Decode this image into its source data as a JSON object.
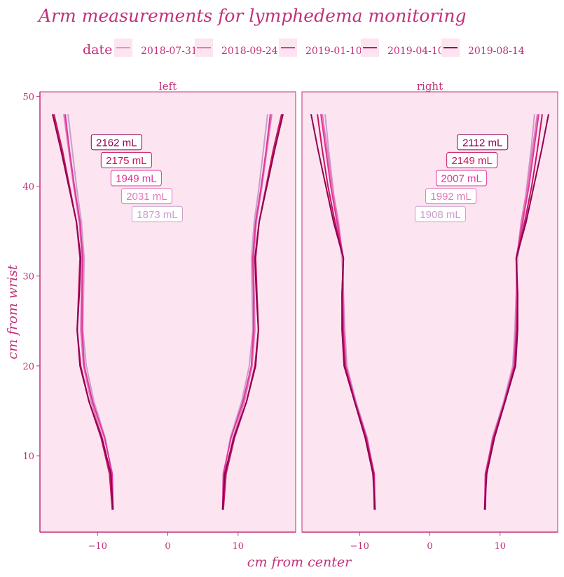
{
  "chart_data": {
    "type": "line",
    "title": "Arm measurements for lymphedema monitoring",
    "xlabel": "cm from center",
    "ylabel": "cm from wrist",
    "xlim": [
      -18.2,
      18.2
    ],
    "ylim": [
      1.5,
      50.5
    ],
    "xticks": [
      -10,
      0,
      10
    ],
    "yticks": [
      10,
      20,
      30,
      40,
      50
    ],
    "grid": false,
    "legend": {
      "title": "date",
      "position": "top",
      "entries": [
        "2018-07-31",
        "2018-09-24",
        "2019-01-10",
        "2019-04-10",
        "2019-08-14"
      ]
    },
    "colors": {
      "2018-07-31": "#c99fcd",
      "2018-09-24": "#e577b9",
      "2019-01-10": "#e0359c",
      "2019-04-10": "#c8155f",
      "2019-08-14": "#8e0152",
      "panel_bg": "#fce4f0",
      "accent": "#c2307a"
    },
    "y": [
      4,
      8,
      12,
      16,
      20,
      24,
      28,
      32,
      36,
      40,
      44,
      48
    ],
    "panels": [
      {
        "name": "left",
        "series": [
          {
            "name": "2018-07-31",
            "half_width": [
              7.8,
              8.0,
              8.9,
              10.5,
              11.6,
              12.1,
              12.0,
              11.9,
              12.3,
              13.0,
              13.6,
              14.2
            ],
            "volume_label": "1873 mL"
          },
          {
            "name": "2018-09-24",
            "half_width": [
              7.9,
              8.2,
              9.3,
              10.9,
              12.0,
              12.4,
              12.3,
              12.2,
              12.6,
              13.4,
              14.1,
              14.8
            ],
            "volume_label": "2031 mL"
          },
          {
            "name": "2019-01-10",
            "half_width": [
              7.8,
              7.9,
              9.0,
              10.7,
              11.9,
              12.2,
              12.2,
              12.1,
              12.5,
              13.3,
              14.0,
              14.6
            ],
            "volume_label": "1949 mL"
          },
          {
            "name": "2019-04-10",
            "half_width": [
              7.9,
              8.3,
              9.5,
              11.2,
              12.4,
              12.9,
              12.7,
              12.5,
              13.0,
              14.0,
              15.0,
              16.2
            ],
            "volume_label": "2175 mL"
          },
          {
            "name": "2019-08-14",
            "half_width": [
              7.8,
              8.1,
              9.4,
              11.2,
              12.5,
              12.9,
              12.6,
              12.4,
              13.0,
              14.1,
              15.2,
              16.4
            ],
            "volume_label": "2162 mL"
          }
        ]
      },
      {
        "name": "right",
        "series": [
          {
            "name": "2018-07-31",
            "half_width": [
              7.9,
              8.0,
              8.9,
              10.5,
              11.8,
              12.1,
              12.3,
              12.5,
              13.3,
              13.8,
              14.4,
              14.9
            ],
            "volume_label": "1908 mL"
          },
          {
            "name": "2018-09-24",
            "half_width": [
              7.9,
              8.0,
              9.0,
              10.6,
              11.9,
              12.2,
              12.3,
              12.4,
              13.0,
              13.9,
              14.6,
              15.3
            ],
            "volume_label": "1992 mL"
          },
          {
            "name": "2019-01-10",
            "half_width": [
              7.8,
              7.9,
              9.0,
              10.6,
              12.0,
              12.3,
              12.4,
              12.3,
              13.2,
              14.1,
              14.8,
              15.5
            ],
            "volume_label": "2007 mL"
          },
          {
            "name": "2019-04-10",
            "half_width": [
              7.9,
              8.0,
              9.1,
              10.7,
              12.1,
              12.4,
              12.5,
              12.3,
              13.5,
              14.5,
              15.3,
              16.0
            ],
            "volume_label": "2149 mL"
          },
          {
            "name": "2019-08-14",
            "half_width": [
              7.8,
              8.1,
              9.2,
              10.7,
              12.2,
              12.5,
              12.5,
              12.3,
              13.7,
              14.8,
              15.9,
              16.9
            ],
            "volume_label": "2112 mL"
          }
        ]
      }
    ],
    "volume_label_positions": {
      "left": [
        {
          "series": "2019-08-14",
          "x": -7.3,
          "y": 44.9
        },
        {
          "series": "2019-04-10",
          "x": -5.9,
          "y": 42.9
        },
        {
          "series": "2019-01-10",
          "x": -4.5,
          "y": 40.9
        },
        {
          "series": "2018-09-24",
          "x": -3.0,
          "y": 38.9
        },
        {
          "series": "2018-07-31",
          "x": -1.5,
          "y": 36.9
        }
      ],
      "right": [
        {
          "series": "2019-08-14",
          "x": 7.5,
          "y": 44.9
        },
        {
          "series": "2019-04-10",
          "x": 6.0,
          "y": 42.9
        },
        {
          "series": "2019-01-10",
          "x": 4.5,
          "y": 40.9
        },
        {
          "series": "2018-09-24",
          "x": 3.0,
          "y": 38.9
        },
        {
          "series": "2018-07-31",
          "x": 1.5,
          "y": 36.9
        }
      ]
    }
  }
}
